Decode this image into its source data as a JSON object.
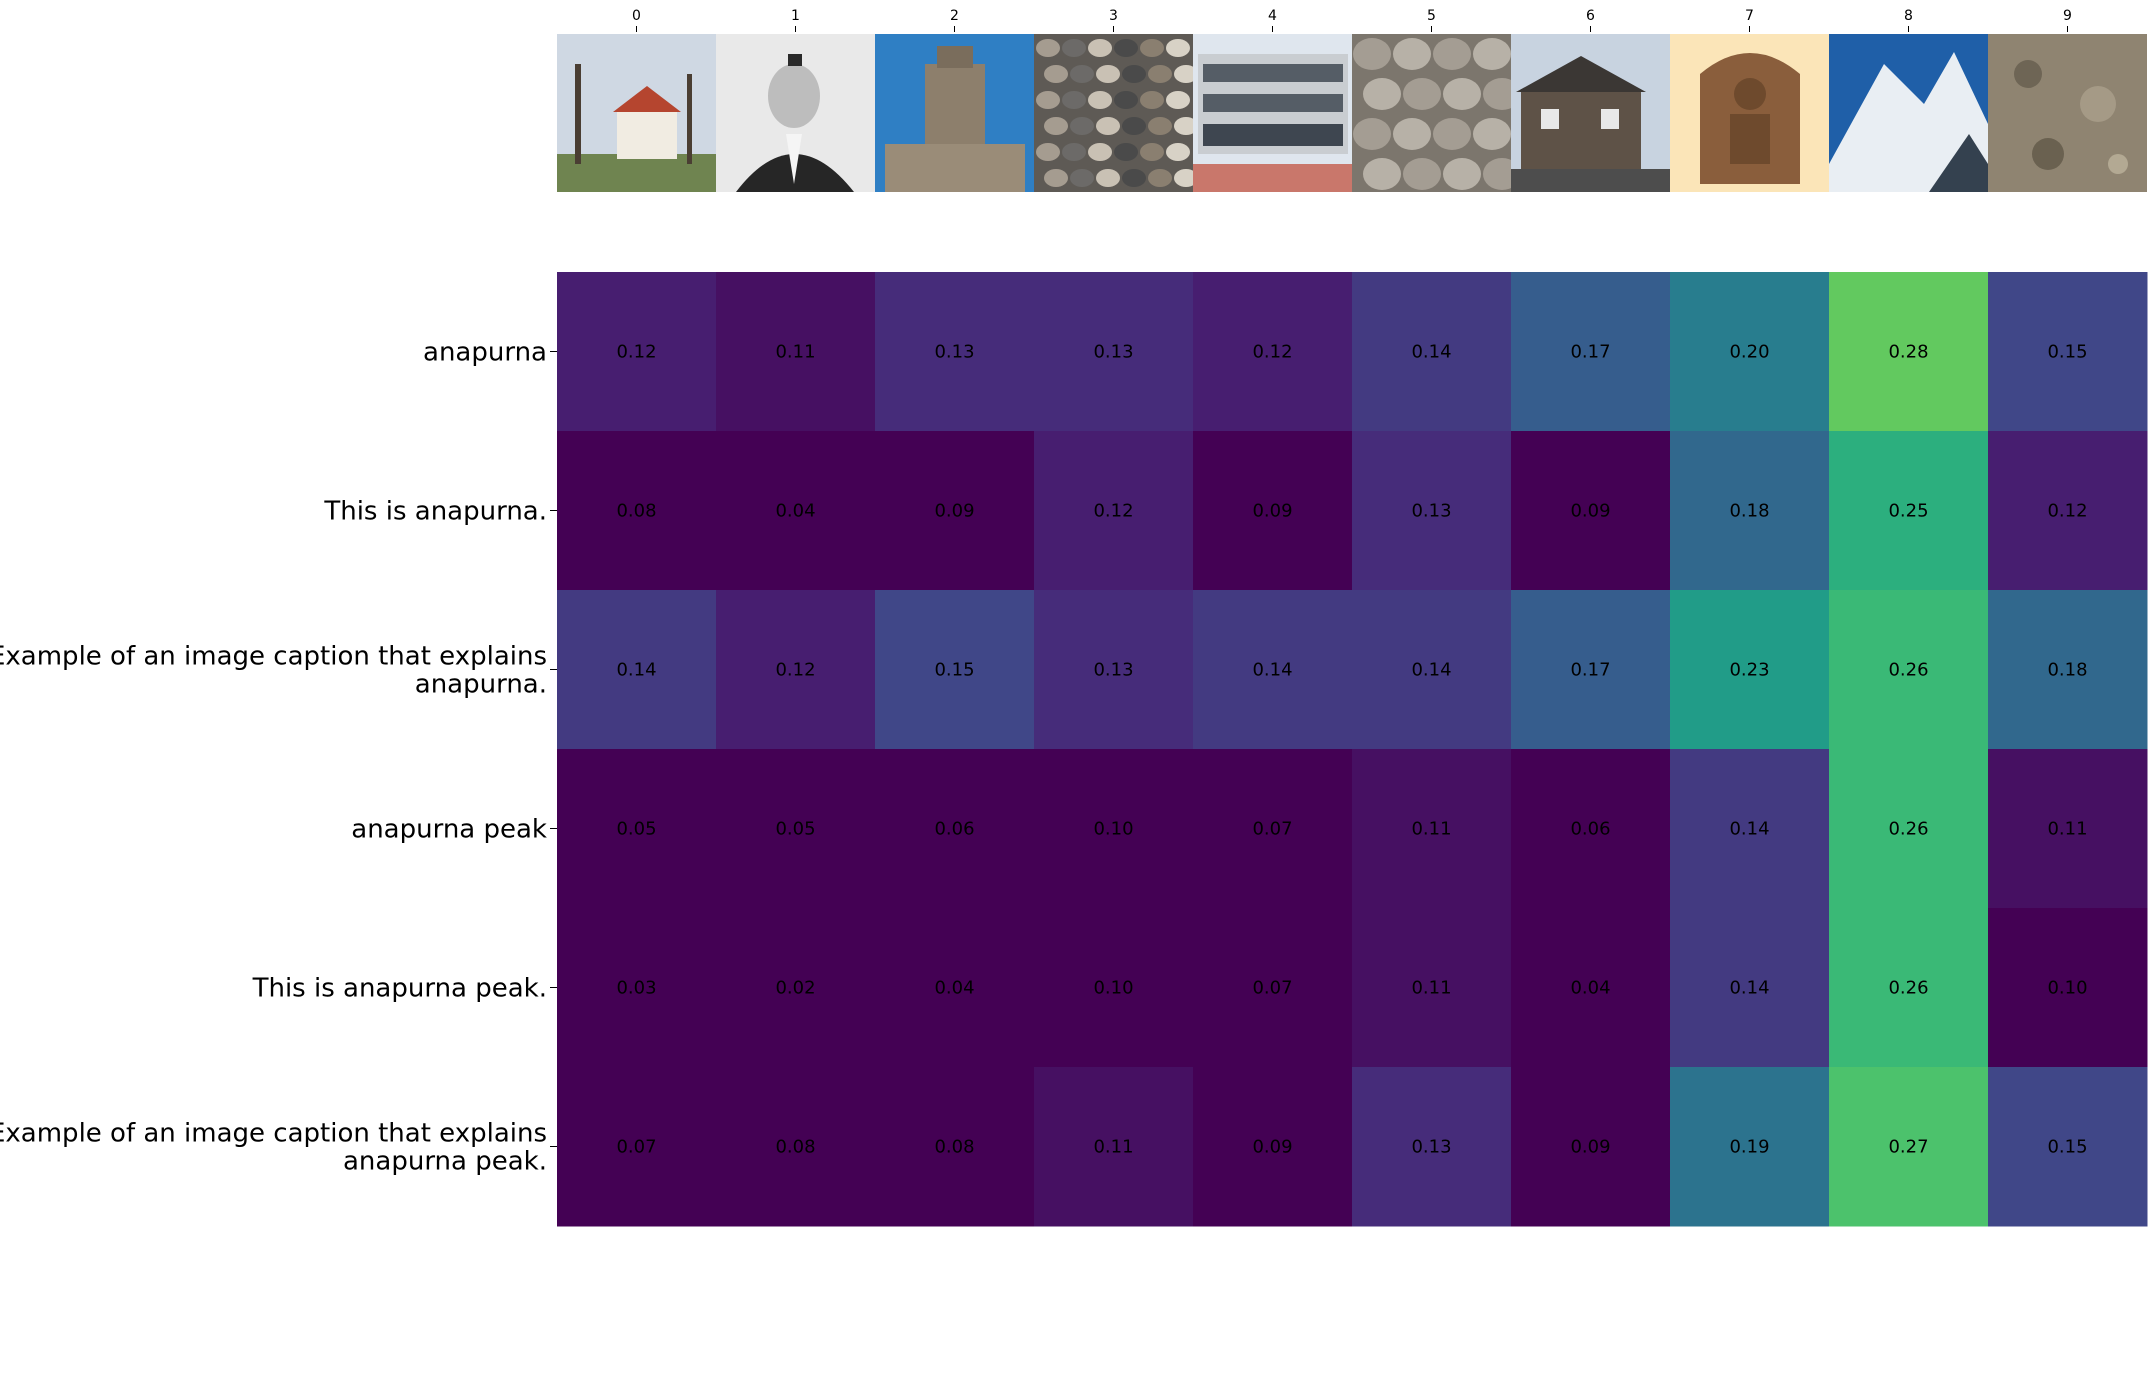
{
  "chart_data": {
    "type": "heatmap",
    "title": "",
    "xlabel": "",
    "ylabel": "",
    "columns": [
      "0",
      "1",
      "2",
      "3",
      "4",
      "5",
      "6",
      "7",
      "8",
      "9"
    ],
    "column_images": [
      "church-trees-photo",
      "man-portrait-photo",
      "stone-tower-photo",
      "pebbles-closeup-photo",
      "modern-building-photo",
      "smooth-stones-photo",
      "stone-house-photo",
      "carved-deity-sculpture-photo",
      "snowy-mountain-photo",
      "rough-rock-texture-photo"
    ],
    "rows": [
      "anapurna",
      "This is anapurna.",
      "Example of an image caption that explains anapurna.",
      "anapurna peak",
      "This is anapurna peak.",
      "Example of an image caption that explains anapurna peak."
    ],
    "values": [
      [
        0.12,
        0.11,
        0.13,
        0.13,
        0.12,
        0.14,
        0.17,
        0.2,
        0.28,
        0.15
      ],
      [
        0.08,
        0.04,
        0.09,
        0.12,
        0.09,
        0.13,
        0.09,
        0.18,
        0.25,
        0.12
      ],
      [
        0.14,
        0.12,
        0.15,
        0.13,
        0.14,
        0.14,
        0.17,
        0.23,
        0.26,
        0.18
      ],
      [
        0.05,
        0.05,
        0.06,
        0.1,
        0.07,
        0.11,
        0.06,
        0.14,
        0.26,
        0.11
      ],
      [
        0.03,
        0.02,
        0.04,
        0.1,
        0.07,
        0.11,
        0.04,
        0.14,
        0.26,
        0.1
      ],
      [
        0.07,
        0.08,
        0.08,
        0.11,
        0.09,
        0.13,
        0.09,
        0.19,
        0.27,
        0.15
      ]
    ],
    "value_labels": [
      [
        "0.12",
        "0.11",
        "0.13",
        "0.13",
        "0.12",
        "0.14",
        "0.17",
        "0.20",
        "0.28",
        "0.15"
      ],
      [
        "0.08",
        "0.04",
        "0.09",
        "0.12",
        "0.09",
        "0.13",
        "0.09",
        "0.18",
        "0.25",
        "0.12"
      ],
      [
        "0.14",
        "0.12",
        "0.15",
        "0.13",
        "0.14",
        "0.14",
        "0.17",
        "0.23",
        "0.26",
        "0.18"
      ],
      [
        "0.05",
        "0.05",
        "0.06",
        "0.10",
        "0.07",
        "0.11",
        "0.06",
        "0.14",
        "0.26",
        "0.11"
      ],
      [
        "0.03",
        "0.02",
        "0.04",
        "0.10",
        "0.07",
        "0.11",
        "0.04",
        "0.14",
        "0.26",
        "0.10"
      ],
      [
        "0.07",
        "0.08",
        "0.08",
        "0.11",
        "0.09",
        "0.13",
        "0.09",
        "0.19",
        "0.27",
        "0.15"
      ]
    ],
    "colormap": "viridis",
    "vmin": 0.1,
    "vmax": 0.3,
    "grid": false,
    "legend": "none"
  }
}
